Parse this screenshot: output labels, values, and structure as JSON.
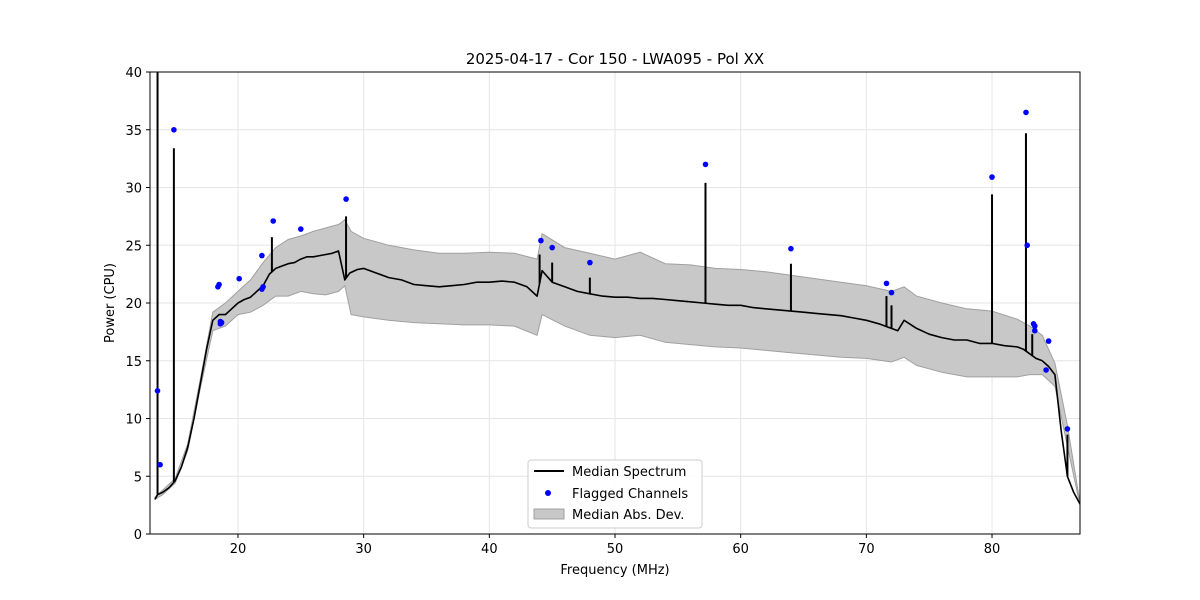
{
  "chart_data": {
    "type": "line",
    "title": "2025-04-17 - Cor 150 - LWA095 - Pol XX",
    "xlabel": "Frequency (MHz)",
    "ylabel": "Power (CPU)",
    "xlim": [
      13,
      87
    ],
    "ylim": [
      0,
      40
    ],
    "xticks": [
      20,
      30,
      40,
      50,
      60,
      70,
      80
    ],
    "yticks": [
      0,
      5,
      10,
      15,
      20,
      25,
      30,
      35,
      40
    ],
    "grid": true,
    "legend_position": "lower-center",
    "legend": [
      "Median Spectrum",
      "Flagged Channels",
      "Median Abs. Dev."
    ],
    "colors": {
      "median": "#000000",
      "flagged": "#0000ff",
      "mad_fill": "#c8c8c8",
      "mad_edge": "#a0a0a0"
    },
    "median_spectrum": {
      "x": [
        13.4,
        13.6,
        14.0,
        14.5,
        15.0,
        15.5,
        16.0,
        16.5,
        17.0,
        17.5,
        18.0,
        18.5,
        19.0,
        19.5,
        20.0,
        20.5,
        21.0,
        21.5,
        22.0,
        22.5,
        23.0,
        23.5,
        24.0,
        24.5,
        25.0,
        25.5,
        26.0,
        26.5,
        27.0,
        27.5,
        28.0,
        28.5,
        28.9,
        29.5,
        30.0,
        31.0,
        32.0,
        33.0,
        34.0,
        35.0,
        36.0,
        37.0,
        38.0,
        39.0,
        40.0,
        41.0,
        42.0,
        43.0,
        43.8,
        44.2,
        45.0,
        46.0,
        47.0,
        48.0,
        49.0,
        50.0,
        51.0,
        52.0,
        53.0,
        54.0,
        55.0,
        56.0,
        57.0,
        58.0,
        59.0,
        60.0,
        61.0,
        62.0,
        63.0,
        64.0,
        65.0,
        66.0,
        67.0,
        68.0,
        69.0,
        70.0,
        71.0,
        72.0,
        72.5,
        73.0,
        74.0,
        75.0,
        76.0,
        77.0,
        78.0,
        79.0,
        80.0,
        81.0,
        82.0,
        82.5,
        83.0,
        83.5,
        84.0,
        84.5,
        85.0,
        85.5,
        86.0,
        86.5,
        87.0
      ],
      "y": [
        3.0,
        3.4,
        3.6,
        4.0,
        4.6,
        5.8,
        7.5,
        10.0,
        13.0,
        16.0,
        18.5,
        19.0,
        19.0,
        19.5,
        20.0,
        20.3,
        20.5,
        21.0,
        21.5,
        22.5,
        23.0,
        23.2,
        23.4,
        23.5,
        23.8,
        24.0,
        24.0,
        24.1,
        24.2,
        24.3,
        24.5,
        22.0,
        22.6,
        22.9,
        23.0,
        22.6,
        22.2,
        22.0,
        21.6,
        21.5,
        21.4,
        21.5,
        21.6,
        21.8,
        21.8,
        21.9,
        21.8,
        21.4,
        20.6,
        22.8,
        21.8,
        21.4,
        21.0,
        20.8,
        20.6,
        20.5,
        20.5,
        20.4,
        20.4,
        20.3,
        20.2,
        20.1,
        20.0,
        19.9,
        19.8,
        19.8,
        19.6,
        19.5,
        19.4,
        19.3,
        19.2,
        19.1,
        19.0,
        18.9,
        18.7,
        18.5,
        18.2,
        17.8,
        17.6,
        18.5,
        17.8,
        17.3,
        17.0,
        16.8,
        16.8,
        16.5,
        16.5,
        16.3,
        16.2,
        16.0,
        15.6,
        15.2,
        15.0,
        14.5,
        13.8,
        9.0,
        5.0,
        3.6,
        2.6
      ]
    },
    "spikes": [
      {
        "x": 13.6,
        "y": 40.0
      },
      {
        "x": 14.9,
        "y": 33.4
      },
      {
        "x": 22.7,
        "y": 25.7
      },
      {
        "x": 28.6,
        "y": 27.5
      },
      {
        "x": 44.0,
        "y": 24.2
      },
      {
        "x": 45.0,
        "y": 23.5
      },
      {
        "x": 48.0,
        "y": 22.2
      },
      {
        "x": 57.2,
        "y": 30.4
      },
      {
        "x": 64.0,
        "y": 23.4
      },
      {
        "x": 71.6,
        "y": 20.6
      },
      {
        "x": 72.0,
        "y": 19.8
      },
      {
        "x": 80.0,
        "y": 29.4
      },
      {
        "x": 82.7,
        "y": 34.7
      },
      {
        "x": 83.2,
        "y": 17.3
      },
      {
        "x": 86.0,
        "y": 8.6
      }
    ],
    "mad_band": {
      "x": [
        13.4,
        14.0,
        15.0,
        16.0,
        17.0,
        18.0,
        19.0,
        20.0,
        21.0,
        22.0,
        23.0,
        24.0,
        25.0,
        26.0,
        27.0,
        28.0,
        28.5,
        29.0,
        30.0,
        32.0,
        34.0,
        36.0,
        38.0,
        40.0,
        42.0,
        43.8,
        44.2,
        46.0,
        48.0,
        50.0,
        52.0,
        54.0,
        56.0,
        58.0,
        60.0,
        62.0,
        64.0,
        66.0,
        68.0,
        70.0,
        72.0,
        73.0,
        74.0,
        76.0,
        78.0,
        80.0,
        82.0,
        83.0,
        84.0,
        85.0,
        86.0,
        87.0
      ],
      "upper": [
        3.2,
        3.8,
        4.8,
        7.8,
        13.4,
        19.2,
        20.0,
        21.0,
        22.0,
        23.5,
        24.8,
        25.5,
        25.8,
        26.2,
        26.5,
        26.8,
        27.2,
        26.2,
        25.6,
        25.0,
        24.6,
        24.3,
        24.3,
        24.4,
        24.3,
        23.8,
        26.0,
        24.8,
        24.3,
        23.8,
        24.4,
        23.4,
        23.3,
        23.0,
        22.9,
        22.7,
        22.4,
        22.1,
        21.8,
        21.5,
        21.0,
        21.4,
        20.6,
        20.0,
        19.5,
        19.3,
        18.6,
        18.0,
        17.2,
        14.8,
        9.4,
        2.7
      ],
      "lower": [
        3.0,
        3.4,
        4.4,
        7.2,
        12.6,
        17.6,
        18.0,
        19.0,
        19.2,
        19.8,
        20.6,
        20.6,
        21.0,
        20.8,
        20.7,
        21.0,
        21.5,
        19.0,
        18.8,
        18.5,
        18.3,
        18.2,
        18.1,
        18.1,
        18.0,
        17.2,
        19.0,
        18.0,
        17.2,
        17.0,
        17.2,
        16.6,
        16.4,
        16.2,
        16.1,
        15.9,
        15.7,
        15.5,
        15.3,
        15.2,
        14.9,
        15.3,
        14.6,
        14.0,
        13.6,
        13.6,
        13.6,
        13.8,
        13.8,
        12.8,
        7.6,
        2.5
      ]
    },
    "flagged_channels": {
      "x": [
        13.6,
        13.8,
        14.9,
        18.4,
        18.5,
        18.6,
        18.6,
        18.7,
        20.1,
        21.9,
        21.9,
        22.0,
        22.8,
        25.0,
        28.6,
        44.1,
        45.0,
        48.0,
        57.2,
        64.0,
        71.6,
        72.0,
        80.0,
        82.7,
        82.8,
        83.3,
        83.4,
        83.4,
        84.3,
        84.5,
        86.0
      ],
      "y": [
        12.4,
        6.0,
        35.0,
        21.4,
        21.6,
        18.2,
        18.4,
        18.3,
        22.1,
        24.1,
        21.2,
        21.4,
        27.1,
        26.4,
        29.0,
        25.4,
        24.8,
        23.5,
        32.0,
        24.7,
        21.7,
        20.9,
        30.9,
        36.5,
        25.0,
        18.2,
        18.0,
        17.6,
        14.2,
        16.7,
        9.1
      ]
    }
  }
}
